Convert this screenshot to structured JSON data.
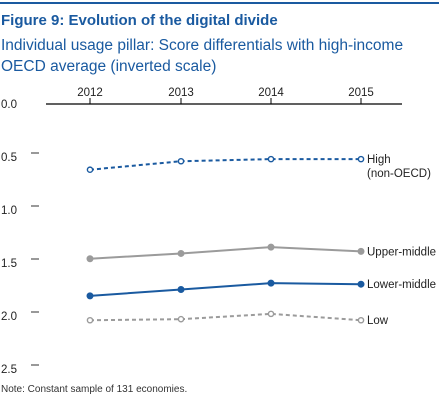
{
  "title": "Figure 9: Evolution of the digital divide",
  "subtitle": "Individual usage pillar: Score differentials with high-income OECD average (inverted scale)",
  "note": "Note: Constant sample of 131 economies.",
  "colors": {
    "accent": "#1a5aa0",
    "gray": "#9b9b9b",
    "text": "#333333"
  },
  "chart_data": {
    "type": "line",
    "title": "Figure 9: Evolution of the digital divide",
    "subtitle": "Individual usage pillar: Score differentials with high-income OECD average (inverted scale)",
    "xlabel": "",
    "ylabel": "",
    "x": [
      "2012",
      "2013",
      "2014",
      "2015"
    ],
    "y_ticks": [
      "0.0",
      "0.5",
      "1.0",
      "1.5",
      "2.0",
      "2.5"
    ],
    "ylim": [
      0.0,
      2.5
    ],
    "y_inverted": true,
    "x_axis_position": "top",
    "grid": false,
    "legend": "direct labels at line ends",
    "series": [
      {
        "name": "High\n(non-OECD)",
        "values": [
          0.62,
          0.54,
          0.52,
          0.52
        ],
        "color": "#1a5aa0",
        "style": "dashed",
        "marker": "open-circle"
      },
      {
        "name": "Upper-middle",
        "values": [
          1.46,
          1.41,
          1.35,
          1.39
        ],
        "color": "#9b9b9b",
        "style": "solid",
        "marker": "filled-circle"
      },
      {
        "name": "Lower-middle",
        "values": [
          1.81,
          1.75,
          1.69,
          1.7
        ],
        "color": "#1a5aa0",
        "style": "solid",
        "marker": "filled-circle"
      },
      {
        "name": "Low",
        "values": [
          2.04,
          2.03,
          1.98,
          2.04
        ],
        "color": "#9b9b9b",
        "style": "dashed",
        "marker": "open-circle"
      }
    ]
  }
}
